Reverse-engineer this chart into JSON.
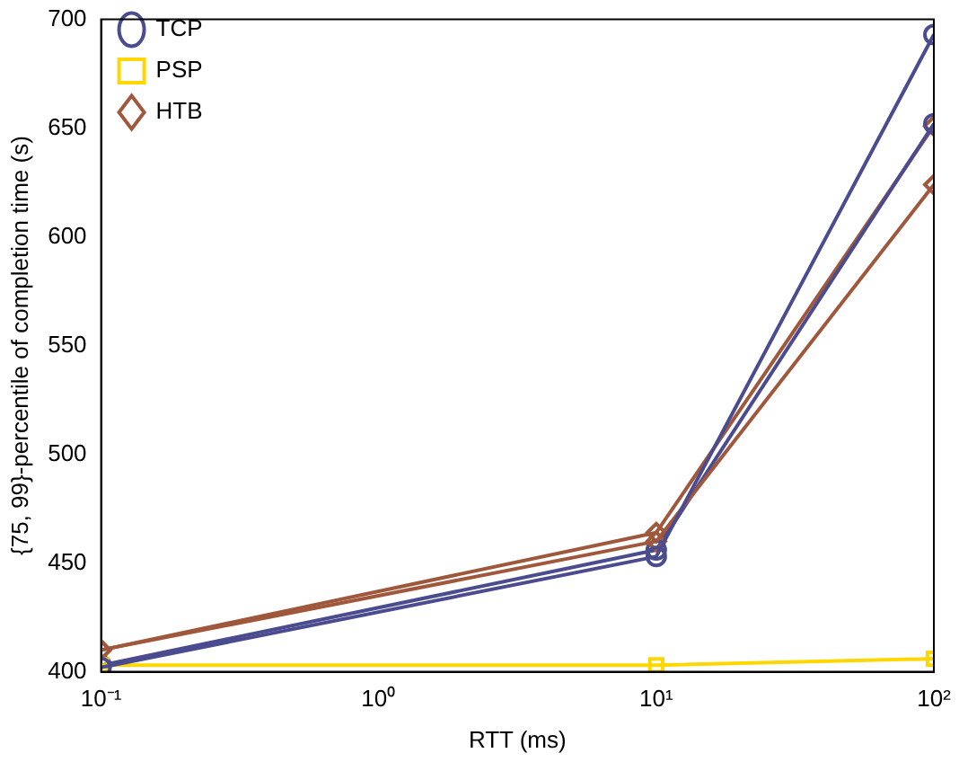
{
  "chart_data": {
    "type": "line",
    "xlabel": "RTT (ms)",
    "ylabel": "{75, 99}-percentile of completion time (s)",
    "x": [
      0.1,
      10,
      100
    ],
    "log": "x",
    "xlim": [
      0.1,
      100
    ],
    "xticks": [
      {
        "value": 0.1,
        "label": "10⁻¹"
      },
      {
        "value": 1,
        "label": "10⁰"
      },
      {
        "value": 10,
        "label": "10¹"
      },
      {
        "value": 100,
        "label": "10²"
      }
    ],
    "ylim": [
      400,
      700
    ],
    "yticks": [
      400,
      450,
      500,
      550,
      600,
      650,
      700
    ],
    "grid": false,
    "legend": "top left",
    "series": [
      {
        "name": "TCP",
        "color": "#4b4b8f",
        "marker": "circle",
        "values": [
          402,
          453,
          693
        ]
      },
      {
        "name": "PSP",
        "color": "#ffd700",
        "marker": "square",
        "values": [
          403,
          403,
          406
        ]
      },
      {
        "name": "HTB",
        "color": "#a0583c",
        "marker": "diamond",
        "values": [
          410,
          460,
          624
        ]
      },
      {
        "color": "#4b4b8f",
        "marker": "circle",
        "values": [
          403,
          456,
          652
        ]
      },
      {
        "color": "#a0583c",
        "marker": "diamond",
        "values": [
          410,
          464,
          651
        ]
      }
    ]
  }
}
